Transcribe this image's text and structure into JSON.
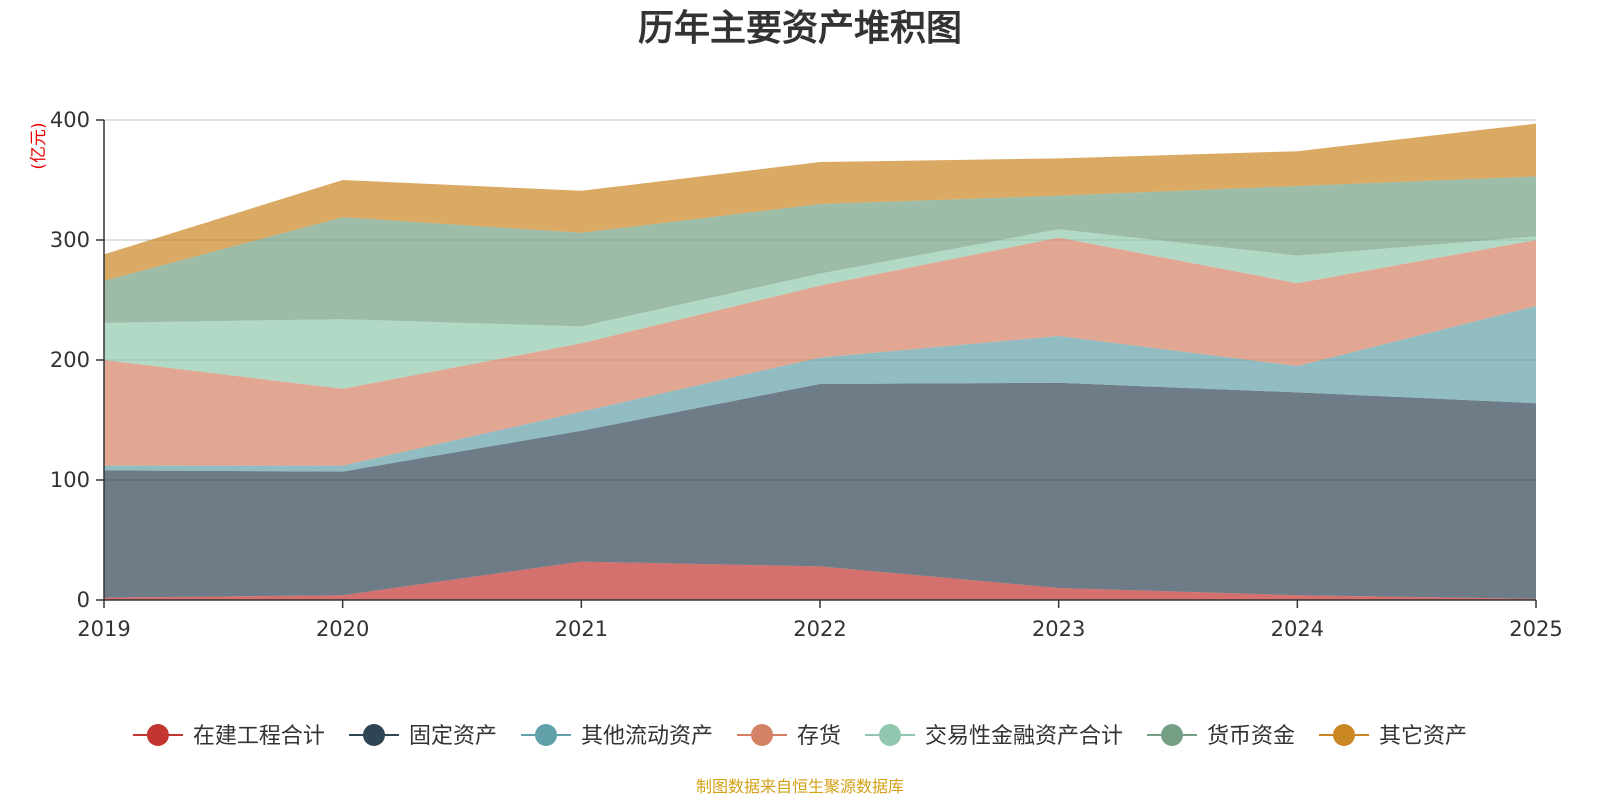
{
  "chart_data": {
    "type": "area",
    "stacked": true,
    "title": "历年主要资产堆积图",
    "unit": "(亿元)",
    "source": "制图数据来自恒生聚源数据库",
    "x": [
      "2019",
      "2020",
      "2021",
      "2022",
      "2023",
      "2024",
      "2025"
    ],
    "ylim": [
      0,
      400
    ],
    "yticks": [
      0,
      100,
      200,
      300,
      400
    ],
    "grid": true,
    "legend_position": "bottom",
    "series": [
      {
        "name": "在建工程合计",
        "color": "#c23531",
        "values": [
          2,
          4,
          32,
          28,
          10,
          4,
          1
        ]
      },
      {
        "name": "固定资产",
        "color": "#2f4554",
        "values": [
          106,
          103,
          109,
          152,
          171,
          169,
          163
        ]
      },
      {
        "name": "其他流动资产",
        "color": "#61a0a8",
        "values": [
          4,
          5,
          16,
          22,
          39,
          22,
          81
        ]
      },
      {
        "name": "存货",
        "color": "#d48265",
        "values": [
          88,
          64,
          57,
          60,
          82,
          69,
          55
        ]
      },
      {
        "name": "交易性金融资产合计",
        "color": "#91c7ae",
        "values": [
          31,
          58,
          14,
          10,
          7,
          23,
          3
        ]
      },
      {
        "name": "货币资金",
        "color": "#749f83",
        "values": [
          35,
          85,
          78,
          58,
          28,
          58,
          50
        ]
      },
      {
        "name": "其它资产",
        "color": "#ca8622",
        "values": [
          22,
          31,
          35,
          35,
          31,
          29,
          44
        ]
      }
    ]
  }
}
